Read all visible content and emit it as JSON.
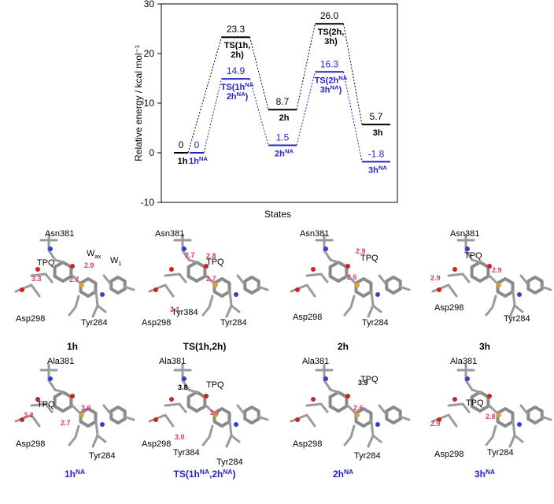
{
  "chart_data": {
    "type": "energy-levels",
    "ylabel": "Relative energy / kcal mol⁻¹",
    "xlabel": "States",
    "ylim": [
      -10,
      30
    ],
    "yticks": [
      -10,
      0,
      10,
      20,
      30
    ],
    "series": [
      {
        "color": "#000000",
        "values": [
          0,
          23.3,
          8.7,
          26,
          5.7
        ],
        "value_labels": [
          "0",
          "23.3",
          "8.7",
          "26.0",
          "5.7"
        ],
        "labels": [
          [
            [
              {
                "t": "1h"
              }
            ]
          ],
          [
            [
              {
                "t": "TS(1h,"
              }
            ],
            [
              {
                "t": "2h)"
              }
            ]
          ],
          [
            [
              {
                "t": "2h"
              }
            ]
          ],
          [
            [
              {
                "t": "TS(2h,"
              }
            ],
            [
              {
                "t": "3h)"
              }
            ]
          ],
          [
            [
              {
                "t": "3h"
              }
            ]
          ]
        ]
      },
      {
        "color": "#2323c8",
        "values": [
          0,
          14.9,
          1.5,
          16.3,
          -1.8
        ],
        "value_labels": [
          "0",
          "14.9",
          "1.5",
          "16.3",
          "-1.8"
        ],
        "labels": [
          [
            [
              {
                "t": "1h"
              },
              {
                "t": "NA",
                "sup": true
              }
            ]
          ],
          [
            [
              {
                "t": "TS(1h"
              },
              {
                "t": "NA",
                "sup": true
              }
            ],
            [
              {
                "t": "2h"
              },
              {
                "t": "NA",
                "sup": true
              },
              {
                "t": ")"
              }
            ]
          ],
          [
            [
              {
                "t": "2h"
              },
              {
                "t": "NA",
                "sup": true
              }
            ]
          ],
          [
            [
              {
                "t": "TS(2h"
              },
              {
                "t": "NA",
                "sup": true
              }
            ],
            [
              {
                "t": "3h"
              },
              {
                "t": "NA",
                "sup": true
              },
              {
                "t": ")"
              }
            ]
          ],
          [
            [
              {
                "t": "3h"
              },
              {
                "t": "NA",
                "sup": true
              }
            ]
          ]
        ]
      }
    ]
  },
  "structures": [
    {
      "caption": [
        {
          "t": "1h"
        }
      ],
      "color": "#000000",
      "residues": [
        [
          {
            "t": "Asn381"
          }
        ],
        [
          {
            "t": "TPQ"
          }
        ],
        [
          {
            "t": "W"
          },
          {
            "t": "ax",
            "sub": true
          }
        ],
        [
          {
            "t": "W"
          },
          {
            "t": "1",
            "sub": true
          }
        ],
        [
          {
            "t": "Asp298"
          }
        ],
        [
          {
            "t": "Tyr284"
          }
        ]
      ],
      "distances": [
        {
          "text": "3.3",
          "color": "#e8336b"
        },
        {
          "text": "2.9",
          "color": "#e8336b"
        },
        {
          "text": "2.7",
          "color": "#e8336b"
        }
      ]
    },
    {
      "caption": [
        {
          "t": "TS(1h,2h)"
        }
      ],
      "color": "#000000",
      "residues": [
        [
          {
            "t": "Asn381"
          }
        ],
        [
          {
            "t": "TPQ"
          }
        ],
        [
          {
            "t": "Asp298"
          }
        ],
        [
          {
            "t": "Tyr384"
          }
        ],
        [
          {
            "t": "Tyr284"
          }
        ]
      ],
      "distances": [
        {
          "text": "2.7",
          "color": "#e8336b"
        },
        {
          "text": "2.8",
          "color": "#e8336b"
        },
        {
          "text": "3.1",
          "color": "#e8336b"
        },
        {
          "text": "2.7",
          "color": "#e8336b"
        }
      ]
    },
    {
      "caption": [
        {
          "t": "2h"
        }
      ],
      "color": "#000000",
      "residues": [
        [
          {
            "t": "Asn381"
          }
        ],
        [
          {
            "t": "TPQ"
          }
        ],
        [
          {
            "t": "Asp298"
          }
        ],
        [
          {
            "t": "Tyr284"
          }
        ]
      ],
      "distances": [
        {
          "text": "2.9",
          "color": "#e8336b"
        },
        {
          "text": "2.6",
          "color": "#e8336b"
        }
      ]
    },
    {
      "caption": [
        {
          "t": "3h"
        }
      ],
      "color": "#000000",
      "residues": [
        [
          {
            "t": "Asn381"
          }
        ],
        [
          {
            "t": "TPQ"
          }
        ],
        [
          {
            "t": "Asp298"
          }
        ],
        [
          {
            "t": "Tyr284"
          }
        ]
      ],
      "distances": [
        {
          "text": "2.9",
          "color": "#e8336b"
        },
        {
          "text": "2.9",
          "color": "#e8336b"
        }
      ]
    },
    {
      "caption": [
        {
          "t": "1h"
        },
        {
          "t": "NA",
          "sup": true
        }
      ],
      "color": "#2323c8",
      "residues": [
        [
          {
            "t": "Ala381"
          }
        ],
        [
          {
            "t": "TPQ"
          }
        ],
        [
          {
            "t": "Asp298"
          }
        ],
        [
          {
            "t": "Tyr284"
          }
        ]
      ],
      "distances": [
        {
          "text": "3.2",
          "color": "#e8336b"
        },
        {
          "text": "3.0",
          "color": "#e8336b"
        },
        {
          "text": "2.7",
          "color": "#e8336b"
        }
      ]
    },
    {
      "caption": [
        {
          "t": "TS(1h"
        },
        {
          "t": "NA",
          "sup": true
        },
        {
          "t": ",2h"
        },
        {
          "t": "NA",
          "sup": true
        },
        {
          "t": ")"
        }
      ],
      "color": "#2323c8",
      "residues": [
        [
          {
            "t": "Ala381"
          }
        ],
        [
          {
            "t": "TPQ"
          }
        ],
        [
          {
            "t": "Asp298"
          }
        ],
        [
          {
            "t": "Tyr384"
          }
        ],
        [
          {
            "t": "Tyr284"
          }
        ]
      ],
      "distances": [
        {
          "text": "3.8",
          "color": "#000000"
        },
        {
          "text": "2.7",
          "color": "#e8336b"
        },
        {
          "text": "3.0",
          "color": "#e8336b"
        }
      ]
    },
    {
      "caption": [
        {
          "t": "2h"
        },
        {
          "t": "NA",
          "sup": true
        }
      ],
      "color": "#2323c8",
      "residues": [
        [
          {
            "t": "Ala381"
          }
        ],
        [
          {
            "t": "TPQ"
          }
        ],
        [
          {
            "t": "Asp298"
          }
        ],
        [
          {
            "t": "Tyr284"
          }
        ]
      ],
      "distances": [
        {
          "text": "3.9",
          "color": "#000000"
        },
        {
          "text": "2.6",
          "color": "#e8336b"
        }
      ]
    },
    {
      "caption": [
        {
          "t": "3h"
        },
        {
          "t": "NA",
          "sup": true
        }
      ],
      "color": "#2323c8",
      "residues": [
        [
          {
            "t": "Ala381"
          }
        ],
        [
          {
            "t": "TPQ"
          }
        ],
        [
          {
            "t": "Asp298"
          }
        ],
        [
          {
            "t": "Tyr284"
          }
        ]
      ],
      "distances": [
        {
          "text": "2.9",
          "color": "#e8336b"
        },
        {
          "text": "2.8",
          "color": "#e8336b"
        }
      ]
    }
  ]
}
